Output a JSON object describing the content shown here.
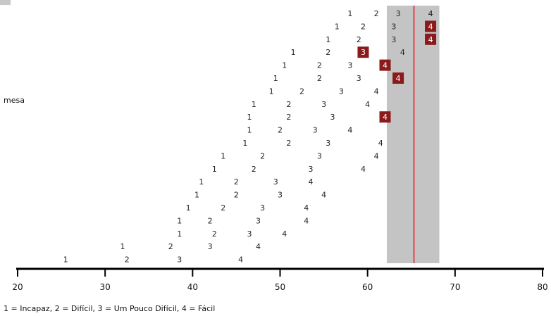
{
  "chart_data": {
    "type": "scatter",
    "xlim": [
      20,
      80
    ],
    "xticks": [
      20,
      30,
      40,
      50,
      60,
      70,
      80
    ],
    "item_label": "mesa",
    "item_label_row": 7,
    "legend": "1 = Incapaz, 2 = Difícil, 3 = Um Pouco Difícil, 4 = Fácil",
    "band": {
      "from": 62.2,
      "to": 68.2,
      "line": 65.3
    },
    "colors": {
      "band": "#c4c4c4",
      "line": "#e0474c",
      "highlight": "#8b1a1a",
      "axis": "#000000"
    },
    "rows": [
      {
        "points": [
          {
            "code": "1",
            "x": 58.0
          },
          {
            "code": "2",
            "x": 61.0
          },
          {
            "code": "3",
            "x": 63.5
          },
          {
            "code": "4",
            "x": 67.2
          }
        ]
      },
      {
        "points": [
          {
            "code": "1",
            "x": 56.5
          },
          {
            "code": "2",
            "x": 59.5
          },
          {
            "code": "3",
            "x": 63.0
          },
          {
            "code": "4",
            "x": 67.2,
            "highlight": true
          }
        ]
      },
      {
        "points": [
          {
            "code": "1",
            "x": 55.5
          },
          {
            "code": "2",
            "x": 59.0
          },
          {
            "code": "3",
            "x": 63.0
          },
          {
            "code": "4",
            "x": 67.2,
            "highlight": true
          }
        ]
      },
      {
        "points": [
          {
            "code": "1",
            "x": 51.5
          },
          {
            "code": "2",
            "x": 55.5
          },
          {
            "code": "3",
            "x": 59.5,
            "highlight": true
          },
          {
            "code": "4",
            "x": 64.0
          }
        ]
      },
      {
        "points": [
          {
            "code": "1",
            "x": 50.5
          },
          {
            "code": "2",
            "x": 54.5
          },
          {
            "code": "3",
            "x": 58.0
          },
          {
            "code": "4",
            "x": 62.0,
            "highlight": true
          }
        ]
      },
      {
        "points": [
          {
            "code": "1",
            "x": 49.5
          },
          {
            "code": "2",
            "x": 54.5
          },
          {
            "code": "3",
            "x": 59.0
          },
          {
            "code": "4",
            "x": 63.5,
            "highlight": true
          }
        ]
      },
      {
        "points": [
          {
            "code": "1",
            "x": 49.0
          },
          {
            "code": "2",
            "x": 52.5
          },
          {
            "code": "3",
            "x": 57.0
          },
          {
            "code": "4",
            "x": 61.0
          }
        ]
      },
      {
        "points": [
          {
            "code": "1",
            "x": 47.0
          },
          {
            "code": "2",
            "x": 51.0
          },
          {
            "code": "3",
            "x": 55.0
          },
          {
            "code": "4",
            "x": 60.0
          }
        ]
      },
      {
        "points": [
          {
            "code": "1",
            "x": 46.5
          },
          {
            "code": "2",
            "x": 51.0
          },
          {
            "code": "3",
            "x": 56.0
          },
          {
            "code": "4",
            "x": 62.0,
            "highlight": true
          }
        ]
      },
      {
        "points": [
          {
            "code": "1",
            "x": 46.5
          },
          {
            "code": "2",
            "x": 50.0
          },
          {
            "code": "3",
            "x": 54.0
          },
          {
            "code": "4",
            "x": 58.0
          }
        ]
      },
      {
        "points": [
          {
            "code": "1",
            "x": 46.0
          },
          {
            "code": "2",
            "x": 51.0
          },
          {
            "code": "3",
            "x": 55.5
          },
          {
            "code": "4",
            "x": 61.5
          }
        ]
      },
      {
        "points": [
          {
            "code": "1",
            "x": 43.5
          },
          {
            "code": "2",
            "x": 48.0
          },
          {
            "code": "3",
            "x": 54.5
          },
          {
            "code": "4",
            "x": 61.0
          }
        ]
      },
      {
        "points": [
          {
            "code": "1",
            "x": 42.5
          },
          {
            "code": "2",
            "x": 47.0
          },
          {
            "code": "3",
            "x": 53.5
          },
          {
            "code": "4",
            "x": 59.5
          }
        ]
      },
      {
        "points": [
          {
            "code": "1",
            "x": 41.0
          },
          {
            "code": "2",
            "x": 45.0
          },
          {
            "code": "3",
            "x": 49.5
          },
          {
            "code": "4",
            "x": 53.5
          }
        ]
      },
      {
        "points": [
          {
            "code": "1",
            "x": 40.5
          },
          {
            "code": "2",
            "x": 45.0
          },
          {
            "code": "3",
            "x": 50.0
          },
          {
            "code": "4",
            "x": 55.0
          }
        ]
      },
      {
        "points": [
          {
            "code": "1",
            "x": 39.5
          },
          {
            "code": "2",
            "x": 43.5
          },
          {
            "code": "3",
            "x": 48.0
          },
          {
            "code": "4",
            "x": 53.0
          }
        ]
      },
      {
        "points": [
          {
            "code": "1",
            "x": 38.5
          },
          {
            "code": "2",
            "x": 42.0
          },
          {
            "code": "3",
            "x": 47.5
          },
          {
            "code": "4",
            "x": 53.0
          }
        ]
      },
      {
        "points": [
          {
            "code": "1",
            "x": 38.5
          },
          {
            "code": "2",
            "x": 42.5
          },
          {
            "code": "3",
            "x": 46.5
          },
          {
            "code": "4",
            "x": 50.5
          }
        ]
      },
      {
        "points": [
          {
            "code": "1",
            "x": 32.0
          },
          {
            "code": "2",
            "x": 37.5
          },
          {
            "code": "3",
            "x": 42.0
          },
          {
            "code": "4",
            "x": 47.5
          }
        ]
      },
      {
        "points": [
          {
            "code": "1",
            "x": 25.5
          },
          {
            "code": "2",
            "x": 32.5
          },
          {
            "code": "3",
            "x": 38.5
          },
          {
            "code": "4",
            "x": 45.5
          }
        ]
      }
    ]
  }
}
